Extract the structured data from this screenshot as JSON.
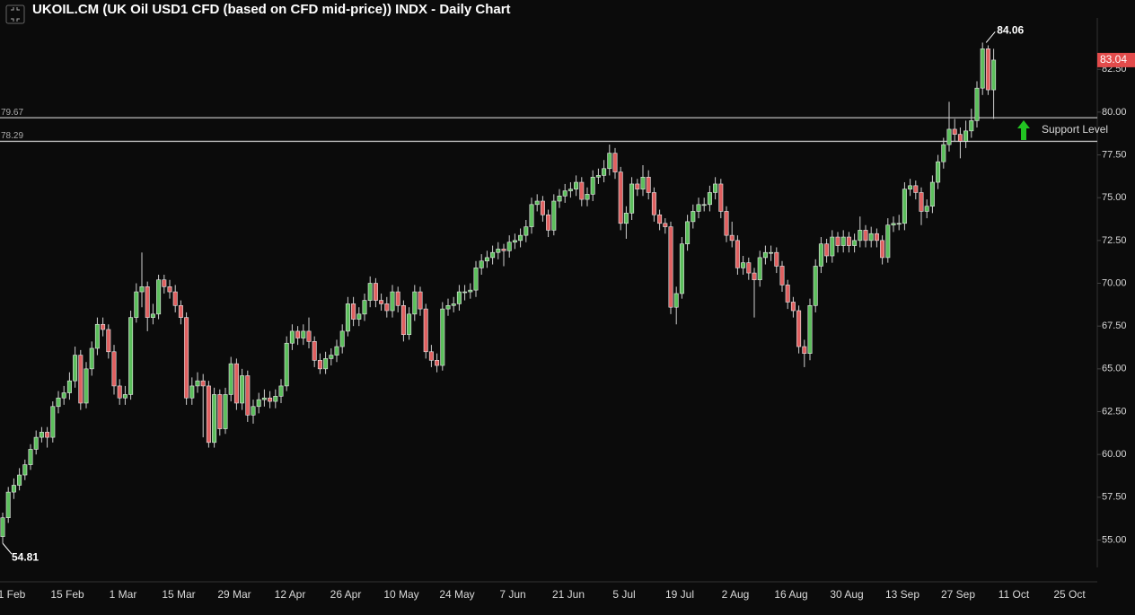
{
  "chart_data": {
    "type": "candlestick",
    "title": "UKOIL.CM (UK Oil USD1 CFD (based on CFD mid-price)) INDX - Daily Chart",
    "categories": [
      "1 Feb",
      null,
      null,
      null,
      null,
      null,
      null,
      null,
      null,
      null,
      "15 Feb",
      null,
      null,
      null,
      null,
      null,
      null,
      null,
      null,
      null,
      "1 Mar",
      null,
      null,
      null,
      null,
      null,
      null,
      null,
      null,
      null,
      "15 Mar",
      null,
      null,
      null,
      null,
      null,
      null,
      null,
      null,
      null,
      "29 Mar",
      null,
      null,
      null,
      null,
      null,
      null,
      null,
      null,
      null,
      "12 Apr",
      null,
      null,
      null,
      null,
      null,
      null,
      null,
      null,
      null,
      "26 Apr",
      null,
      null,
      null,
      null,
      null,
      null,
      null,
      null,
      null,
      "10 May",
      null,
      null,
      null,
      null,
      null,
      null,
      null,
      null,
      null,
      "24 May",
      null,
      null,
      null,
      null,
      null,
      null,
      null,
      null,
      null,
      "7 Jun",
      null,
      null,
      null,
      null,
      null,
      null,
      null,
      null,
      null,
      "21 Jun",
      null,
      null,
      null,
      null,
      null,
      null,
      null,
      null,
      null,
      "5 Jul",
      null,
      null,
      null,
      null,
      null,
      null,
      null,
      null,
      null,
      "19 Jul",
      null,
      null,
      null,
      null,
      null,
      null,
      null,
      null,
      null,
      "2 Aug",
      null,
      null,
      null,
      null,
      null,
      null,
      null,
      null,
      null,
      "16 Aug",
      null,
      null,
      null,
      null,
      null,
      null,
      null,
      null,
      null,
      "30 Aug",
      null,
      null,
      null,
      null,
      null,
      null,
      null,
      null,
      null,
      "13 Sep",
      null,
      null,
      null,
      null,
      null,
      null,
      null,
      null,
      null,
      "27 Sep",
      null,
      null,
      null,
      null,
      null,
      null,
      null,
      null,
      null,
      "11 Oct",
      null,
      null,
      null,
      null,
      null,
      null,
      null,
      null,
      null,
      "25 Oct"
    ],
    "candles": [
      [
        55.2,
        56.6,
        54.81,
        56.3
      ],
      [
        56.3,
        58.1,
        56.0,
        57.8
      ],
      [
        57.8,
        58.6,
        57.4,
        58.2
      ],
      [
        58.2,
        59.2,
        57.9,
        58.8
      ],
      [
        58.8,
        59.7,
        58.5,
        59.4
      ],
      [
        59.4,
        60.6,
        59.1,
        60.3
      ],
      [
        60.3,
        61.4,
        60.0,
        61.0
      ],
      [
        61.0,
        61.6,
        60.7,
        61.3
      ],
      [
        61.3,
        61.6,
        60.4,
        61.0
      ],
      [
        61.0,
        63.1,
        60.7,
        62.8
      ],
      [
        62.8,
        63.7,
        62.4,
        63.3
      ],
      [
        63.3,
        64.0,
        62.9,
        63.6
      ],
      [
        63.6,
        64.8,
        63.2,
        64.3
      ],
      [
        64.3,
        66.3,
        63.9,
        65.8
      ],
      [
        65.8,
        66.1,
        62.6,
        63.0
      ],
      [
        63.0,
        65.4,
        62.7,
        65.0
      ],
      [
        65.0,
        66.6,
        64.6,
        66.2
      ],
      [
        66.2,
        68.0,
        65.8,
        67.6
      ],
      [
        67.6,
        68.0,
        66.9,
        67.3
      ],
      [
        67.3,
        67.6,
        65.6,
        66.0
      ],
      [
        66.0,
        66.4,
        63.5,
        64.0
      ],
      [
        64.0,
        64.4,
        62.9,
        63.3
      ],
      [
        63.3,
        64.0,
        62.9,
        63.5
      ],
      [
        63.5,
        68.4,
        63.2,
        68.0
      ],
      [
        68.0,
        70.0,
        67.7,
        69.5
      ],
      [
        69.5,
        71.8,
        68.6,
        69.8
      ],
      [
        69.8,
        70.1,
        67.2,
        68.0
      ],
      [
        68.0,
        68.8,
        67.6,
        68.2
      ],
      [
        68.2,
        70.5,
        67.9,
        70.2
      ],
      [
        70.2,
        70.5,
        69.4,
        69.8
      ],
      [
        69.8,
        70.2,
        69.1,
        69.5
      ],
      [
        69.5,
        69.9,
        68.3,
        68.7
      ],
      [
        68.7,
        69.0,
        67.6,
        68.0
      ],
      [
        68.0,
        68.3,
        62.9,
        63.3
      ],
      [
        63.3,
        64.5,
        62.9,
        64.0
      ],
      [
        64.0,
        64.8,
        63.6,
        64.3
      ],
      [
        64.3,
        64.7,
        61.0,
        64.0
      ],
      [
        64.0,
        64.3,
        60.4,
        60.7
      ],
      [
        60.7,
        63.9,
        60.4,
        63.5
      ],
      [
        63.5,
        63.8,
        61.1,
        61.5
      ],
      [
        61.5,
        63.9,
        61.2,
        63.5
      ],
      [
        63.5,
        65.7,
        63.1,
        65.3
      ],
      [
        65.3,
        65.6,
        62.6,
        63.0
      ],
      [
        63.0,
        65.0,
        62.6,
        64.6
      ],
      [
        64.6,
        64.9,
        61.9,
        62.3
      ],
      [
        62.3,
        63.2,
        61.8,
        62.8
      ],
      [
        62.8,
        63.6,
        62.4,
        63.2
      ],
      [
        63.2,
        63.8,
        62.8,
        63.3
      ],
      [
        63.3,
        63.7,
        62.7,
        63.1
      ],
      [
        63.1,
        63.8,
        62.7,
        63.4
      ],
      [
        63.4,
        64.4,
        63.0,
        64.0
      ],
      [
        64.0,
        66.9,
        63.7,
        66.5
      ],
      [
        66.5,
        67.6,
        66.1,
        67.2
      ],
      [
        67.2,
        67.5,
        66.4,
        66.8
      ],
      [
        66.8,
        67.6,
        66.4,
        67.2
      ],
      [
        67.2,
        68.0,
        66.2,
        66.6
      ],
      [
        66.6,
        66.9,
        65.1,
        65.5
      ],
      [
        65.5,
        65.9,
        64.7,
        65.0
      ],
      [
        65.0,
        66.0,
        64.7,
        65.6
      ],
      [
        65.6,
        66.2,
        65.2,
        65.8
      ],
      [
        65.8,
        66.7,
        65.4,
        66.3
      ],
      [
        66.3,
        67.6,
        65.9,
        67.2
      ],
      [
        67.2,
        69.2,
        66.9,
        68.8
      ],
      [
        68.8,
        69.2,
        67.5,
        67.9
      ],
      [
        67.9,
        68.6,
        67.5,
        68.2
      ],
      [
        68.2,
        69.4,
        67.8,
        69.0
      ],
      [
        69.0,
        70.4,
        68.6,
        70.0
      ],
      [
        70.0,
        70.3,
        68.6,
        69.0
      ],
      [
        69.0,
        69.4,
        68.4,
        68.8
      ],
      [
        68.8,
        69.2,
        68.0,
        68.4
      ],
      [
        68.4,
        69.9,
        68.0,
        69.5
      ],
      [
        69.5,
        69.8,
        68.3,
        68.7
      ],
      [
        68.7,
        69.0,
        66.6,
        67.0
      ],
      [
        67.0,
        68.6,
        66.7,
        68.2
      ],
      [
        68.2,
        69.9,
        67.8,
        69.5
      ],
      [
        69.5,
        69.8,
        68.1,
        68.5
      ],
      [
        68.5,
        68.8,
        65.6,
        66.0
      ],
      [
        66.0,
        66.4,
        65.1,
        65.5
      ],
      [
        65.5,
        65.9,
        64.8,
        65.2
      ],
      [
        65.2,
        68.9,
        64.9,
        68.5
      ],
      [
        68.5,
        69.1,
        68.1,
        68.7
      ],
      [
        68.7,
        69.2,
        68.3,
        68.8
      ],
      [
        68.8,
        69.9,
        68.4,
        69.5
      ],
      [
        69.5,
        69.9,
        69.0,
        69.5
      ],
      [
        69.5,
        70.0,
        69.1,
        69.6
      ],
      [
        69.6,
        71.3,
        69.2,
        70.9
      ],
      [
        70.9,
        71.7,
        70.5,
        71.3
      ],
      [
        71.3,
        71.9,
        70.9,
        71.5
      ],
      [
        71.5,
        72.2,
        71.1,
        71.8
      ],
      [
        71.8,
        72.4,
        71.4,
        72.0
      ],
      [
        72.0,
        72.3,
        71.0,
        71.9
      ],
      [
        71.9,
        72.8,
        71.5,
        72.4
      ],
      [
        72.4,
        72.9,
        72.0,
        72.5
      ],
      [
        72.5,
        73.2,
        72.1,
        72.8
      ],
      [
        72.8,
        73.7,
        72.4,
        73.3
      ],
      [
        73.3,
        75.0,
        72.9,
        74.6
      ],
      [
        74.6,
        75.2,
        74.2,
        74.8
      ],
      [
        74.8,
        75.1,
        73.6,
        74.0
      ],
      [
        74.0,
        74.3,
        72.7,
        73.1
      ],
      [
        73.1,
        75.2,
        72.8,
        74.8
      ],
      [
        74.8,
        75.5,
        74.4,
        75.1
      ],
      [
        75.1,
        75.8,
        74.7,
        75.4
      ],
      [
        75.4,
        75.9,
        75.0,
        75.5
      ],
      [
        75.5,
        76.3,
        75.1,
        75.9
      ],
      [
        75.9,
        76.2,
        74.5,
        74.9
      ],
      [
        74.9,
        75.6,
        74.5,
        75.2
      ],
      [
        75.2,
        76.6,
        74.8,
        76.2
      ],
      [
        76.2,
        76.7,
        75.8,
        76.3
      ],
      [
        76.3,
        77.2,
        75.9,
        76.7
      ],
      [
        76.7,
        78.1,
        76.3,
        77.6
      ],
      [
        77.6,
        77.9,
        76.1,
        76.5
      ],
      [
        76.5,
        76.8,
        73.1,
        73.5
      ],
      [
        73.5,
        74.5,
        72.6,
        74.1
      ],
      [
        74.1,
        76.2,
        73.7,
        75.8
      ],
      [
        75.8,
        76.1,
        75.1,
        75.5
      ],
      [
        75.5,
        76.9,
        75.1,
        76.2
      ],
      [
        76.2,
        76.6,
        74.9,
        75.3
      ],
      [
        75.3,
        75.6,
        73.6,
        74.0
      ],
      [
        74.0,
        74.3,
        73.1,
        73.5
      ],
      [
        73.5,
        73.8,
        72.9,
        73.3
      ],
      [
        73.3,
        73.6,
        68.2,
        68.6
      ],
      [
        68.6,
        69.8,
        67.6,
        69.4
      ],
      [
        69.4,
        72.7,
        69.1,
        72.3
      ],
      [
        72.3,
        74.0,
        71.9,
        73.6
      ],
      [
        73.6,
        74.6,
        73.2,
        74.2
      ],
      [
        74.2,
        75.0,
        73.8,
        74.6
      ],
      [
        74.6,
        75.0,
        74.2,
        74.6
      ],
      [
        74.6,
        75.7,
        74.2,
        75.3
      ],
      [
        75.3,
        76.2,
        74.9,
        75.8
      ],
      [
        75.8,
        76.1,
        73.8,
        74.2
      ],
      [
        74.2,
        74.5,
        72.4,
        72.8
      ],
      [
        72.8,
        73.6,
        72.1,
        72.5
      ],
      [
        72.5,
        72.8,
        70.5,
        70.9
      ],
      [
        70.9,
        71.6,
        70.5,
        71.2
      ],
      [
        71.2,
        71.5,
        70.2,
        70.6
      ],
      [
        70.6,
        70.9,
        68.0,
        70.2
      ],
      [
        70.2,
        71.9,
        69.8,
        71.5
      ],
      [
        71.5,
        72.2,
        71.1,
        71.8
      ],
      [
        71.8,
        72.2,
        71.3,
        71.8
      ],
      [
        71.8,
        72.1,
        70.6,
        71.0
      ],
      [
        71.0,
        71.3,
        69.5,
        69.9
      ],
      [
        69.9,
        70.2,
        68.5,
        68.9
      ],
      [
        68.9,
        69.2,
        68.0,
        68.4
      ],
      [
        68.4,
        68.7,
        65.9,
        66.3
      ],
      [
        66.3,
        66.7,
        65.1,
        65.9
      ],
      [
        65.9,
        69.1,
        65.5,
        68.7
      ],
      [
        68.7,
        71.4,
        68.3,
        71.0
      ],
      [
        71.0,
        72.7,
        70.6,
        72.3
      ],
      [
        72.3,
        72.6,
        71.2,
        71.6
      ],
      [
        71.6,
        73.1,
        71.2,
        72.7
      ],
      [
        72.7,
        73.0,
        71.8,
        72.2
      ],
      [
        72.2,
        73.1,
        71.8,
        72.7
      ],
      [
        72.7,
        73.0,
        71.8,
        72.2
      ],
      [
        72.2,
        72.9,
        71.8,
        72.5
      ],
      [
        72.5,
        73.9,
        72.1,
        73.1
      ],
      [
        73.1,
        73.4,
        72.1,
        72.5
      ],
      [
        72.5,
        73.3,
        72.1,
        72.9
      ],
      [
        72.9,
        73.2,
        72.1,
        72.5
      ],
      [
        72.5,
        72.8,
        71.1,
        71.5
      ],
      [
        71.5,
        73.8,
        71.2,
        73.4
      ],
      [
        73.4,
        73.9,
        73.0,
        73.5
      ],
      [
        73.5,
        74.0,
        73.1,
        73.5
      ],
      [
        73.5,
        75.9,
        73.1,
        75.5
      ],
      [
        75.5,
        76.1,
        75.1,
        75.7
      ],
      [
        75.7,
        76.0,
        74.9,
        75.3
      ],
      [
        75.3,
        75.6,
        73.4,
        74.2
      ],
      [
        74.2,
        74.9,
        73.8,
        74.5
      ],
      [
        74.5,
        76.3,
        74.1,
        75.9
      ],
      [
        75.9,
        77.5,
        75.5,
        77.1
      ],
      [
        77.1,
        78.5,
        76.7,
        78.1
      ],
      [
        78.1,
        80.6,
        77.7,
        79.0
      ],
      [
        79.0,
        79.6,
        78.3,
        78.7
      ],
      [
        78.7,
        79.1,
        77.3,
        78.3
      ],
      [
        78.3,
        79.5,
        77.9,
        78.9
      ],
      [
        78.9,
        80.2,
        78.5,
        79.5
      ],
      [
        79.5,
        81.8,
        79.1,
        81.4
      ],
      [
        81.4,
        84.06,
        81.0,
        83.7
      ],
      [
        83.7,
        83.9,
        81.0,
        81.3
      ],
      [
        81.3,
        83.7,
        79.6,
        83.04
      ],
      null,
      null,
      null,
      null,
      null,
      null,
      null,
      null,
      null,
      null,
      null,
      null
    ],
    "up_color": "#5cbf5c",
    "down_color": "#e06060",
    "ylim": [
      53.4,
      85.5
    ],
    "yticks": [
      {
        "value": 55,
        "label": "55.00"
      },
      {
        "value": 57.5,
        "label": "57.50"
      },
      {
        "value": 60,
        "label": "60.00"
      },
      {
        "value": 62.5,
        "label": "62.50"
      },
      {
        "value": 65,
        "label": "65.00"
      },
      {
        "value": 67.5,
        "label": "67.50"
      },
      {
        "value": 70,
        "label": "70.00"
      },
      {
        "value": 72.5,
        "label": "72.50"
      },
      {
        "value": 75,
        "label": "75.00"
      },
      {
        "value": 77.5,
        "label": "77.50"
      },
      {
        "value": 80,
        "label": "80.00"
      },
      {
        "value": 82.5,
        "label": "82.50"
      }
    ],
    "support_levels": [
      79.67,
      78.29
    ],
    "support_label": "Support Level"
  }
}
